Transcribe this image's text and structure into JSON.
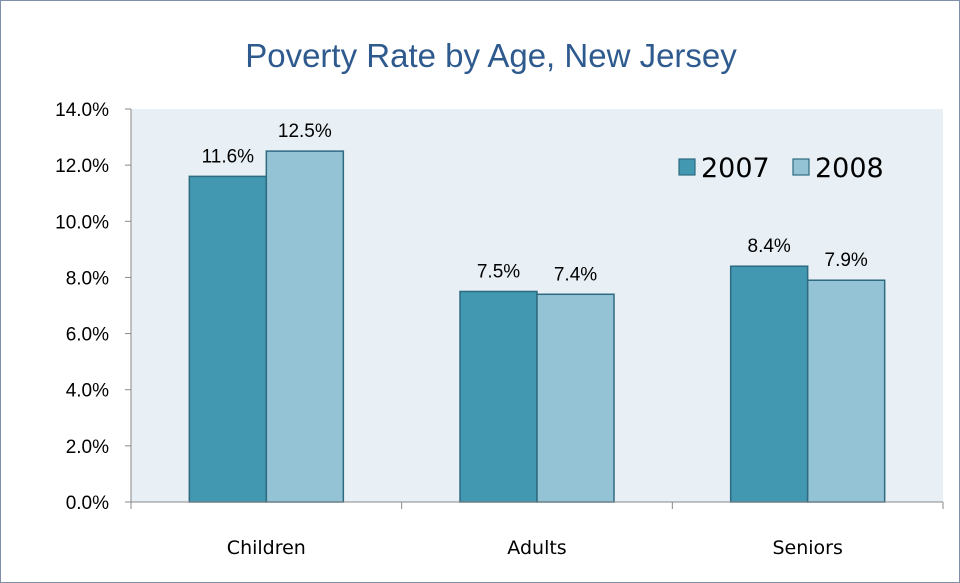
{
  "chart_data": {
    "type": "bar",
    "title": "Poverty Rate by Age, New Jersey",
    "xlabel": "",
    "ylabel": "",
    "categories": [
      "Children",
      "Adults",
      "Seniors"
    ],
    "series": [
      {
        "name": "2007",
        "values": [
          11.6,
          7.5,
          8.4
        ],
        "labels": [
          "11.6%",
          "7.5%",
          "8.4%"
        ],
        "color": "#4198b0"
      },
      {
        "name": "2008",
        "values": [
          12.5,
          7.4,
          7.9
        ],
        "labels": [
          "12.5%",
          "7.4%",
          "7.9%"
        ],
        "color": "#93c3d5"
      }
    ],
    "ylim": [
      0,
      14
    ],
    "yticks": [
      0,
      2,
      4,
      6,
      8,
      10,
      12,
      14
    ],
    "ytick_labels": [
      "0.0%",
      "2.0%",
      "4.0%",
      "6.0%",
      "8.0%",
      "10.0%",
      "12.0%",
      "14.0%"
    ],
    "grid": false,
    "legend_position": "top-right",
    "plot_background": "#e8f0f5",
    "bar_outline": "#2e6a80"
  }
}
